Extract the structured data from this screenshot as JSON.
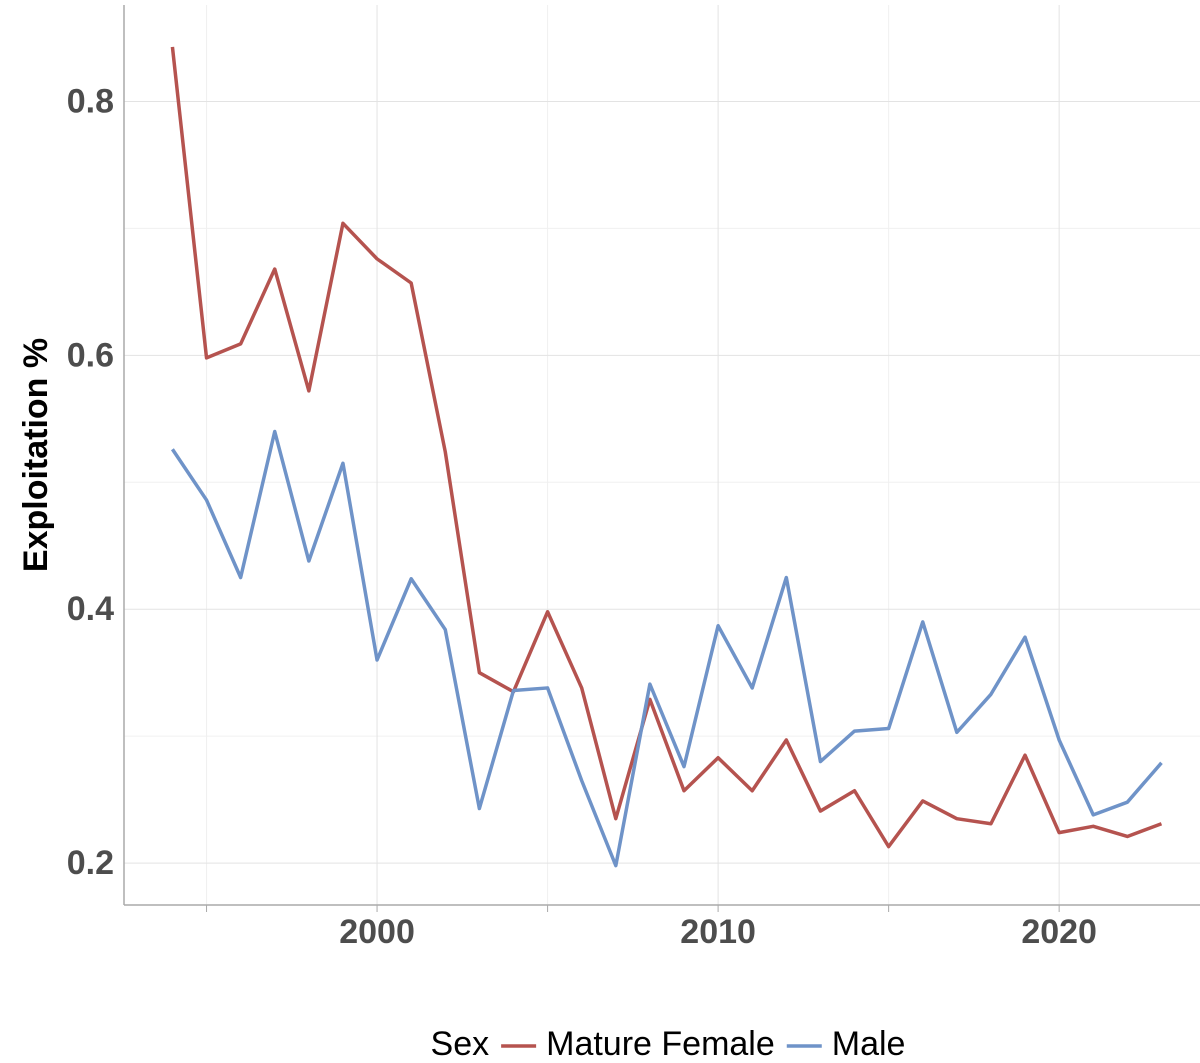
{
  "chart_data": {
    "type": "line",
    "y_label": "Exploitation %",
    "legend_title": "Sex",
    "legend": "bottom",
    "grid": true,
    "x": [
      1994,
      1995,
      1996,
      1997,
      1998,
      1999,
      2000,
      2001,
      2002,
      2003,
      2004,
      2005,
      2006,
      2007,
      2008,
      2009,
      2010,
      2011,
      2012,
      2013,
      2014,
      2015,
      2016,
      2017,
      2018,
      2019,
      2020,
      2021,
      2022,
      2023
    ],
    "series": [
      {
        "name": "Mature Female",
        "color": "#b5534f",
        "values": [
          0.843,
          0.598,
          0.609,
          0.668,
          0.572,
          0.704,
          0.676,
          0.657,
          0.524,
          0.35,
          0.335,
          0.398,
          0.338,
          0.235,
          0.329,
          0.257,
          0.283,
          0.257,
          0.297,
          0.241,
          0.257,
          0.213,
          0.249,
          0.235,
          0.231,
          0.285,
          0.224,
          0.229,
          0.221,
          0.231
        ]
      },
      {
        "name": "Male",
        "color": "#6f93c8",
        "values": [
          0.526,
          0.486,
          0.425,
          0.54,
          0.438,
          0.515,
          0.36,
          0.424,
          0.384,
          0.243,
          0.336,
          0.338,
          0.265,
          0.198,
          0.341,
          0.276,
          0.387,
          0.338,
          0.425,
          0.28,
          0.304,
          0.306,
          0.39,
          0.303,
          0.333,
          0.378,
          0.297,
          0.238,
          0.248,
          0.279
        ]
      }
    ],
    "xlim": [
      1992.58,
      2024.13
    ],
    "xticks": [
      2000,
      2010,
      2020
    ],
    "x_minor_ticks": [
      1995,
      2005,
      2015
    ],
    "ylim": [
      0.167,
      0.876
    ],
    "yticks": [
      0.2,
      0.4,
      0.6,
      0.8
    ],
    "y_minor_ticks": [
      0.3,
      0.5,
      0.7
    ]
  }
}
